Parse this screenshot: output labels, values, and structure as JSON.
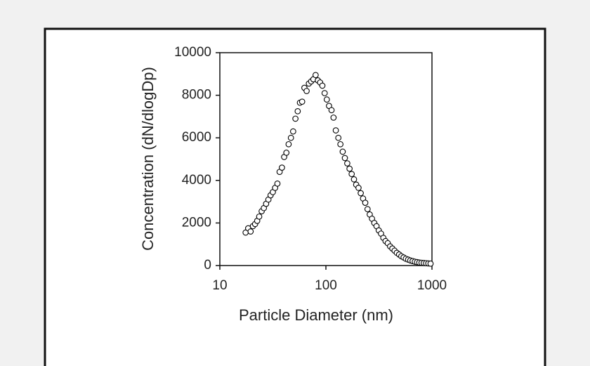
{
  "chart_data": {
    "type": "scatter",
    "xlabel": "Particle Diameter (nm)",
    "ylabel": "Concentration (dN/dlogDp)",
    "xscale": "log",
    "xlim": [
      10,
      1000
    ],
    "xticks": [
      10,
      100,
      1000
    ],
    "ylim": [
      0,
      10000
    ],
    "yticks": [
      0,
      2000,
      4000,
      6000,
      8000,
      10000
    ],
    "color": "#000000",
    "x": [
      17.5,
      18.5,
      19.5,
      20.5,
      21.5,
      22.5,
      23.5,
      24.8,
      26,
      27.3,
      28.7,
      30.1,
      31.6,
      33.2,
      34.9,
      36.6,
      38.5,
      40.4,
      42.4,
      44.5,
      46.8,
      49.1,
      51.6,
      54.2,
      56.9,
      59.7,
      62.7,
      65.8,
      69.1,
      72.6,
      76.2,
      80,
      84,
      88.2,
      92.6,
      97.3,
      102,
      107,
      113,
      118,
      124,
      131,
      137,
      144,
      151,
      159,
      167,
      175,
      184,
      193,
      203,
      213,
      224,
      235,
      247,
      259,
      272,
      286,
      300,
      315,
      331,
      348,
      365,
      383,
      403,
      423,
      444,
      466,
      490,
      514,
      540,
      567,
      596,
      625,
      657,
      690,
      724,
      760,
      798,
      838,
      880,
      924,
      970
    ],
    "values": [
      1550,
      1750,
      1600,
      1850,
      1950,
      2100,
      2300,
      2550,
      2700,
      2900,
      3100,
      3300,
      3450,
      3650,
      3850,
      4400,
      4600,
      5100,
      5300,
      5700,
      6000,
      6300,
      6900,
      7250,
      7650,
      7700,
      8350,
      8200,
      8550,
      8650,
      8750,
      8950,
      8700,
      8600,
      8450,
      8100,
      7800,
      7500,
      7300,
      6950,
      6350,
      6000,
      5700,
      5350,
      5050,
      4800,
      4550,
      4300,
      4050,
      3800,
      3650,
      3400,
      3150,
      2950,
      2650,
      2400,
      2200,
      2000,
      1850,
      1650,
      1500,
      1300,
      1150,
      1050,
      900,
      800,
      700,
      600,
      520,
      440,
      380,
      320,
      280,
      240,
      210,
      180,
      160,
      140,
      130,
      120,
      110,
      100,
      90
    ]
  }
}
